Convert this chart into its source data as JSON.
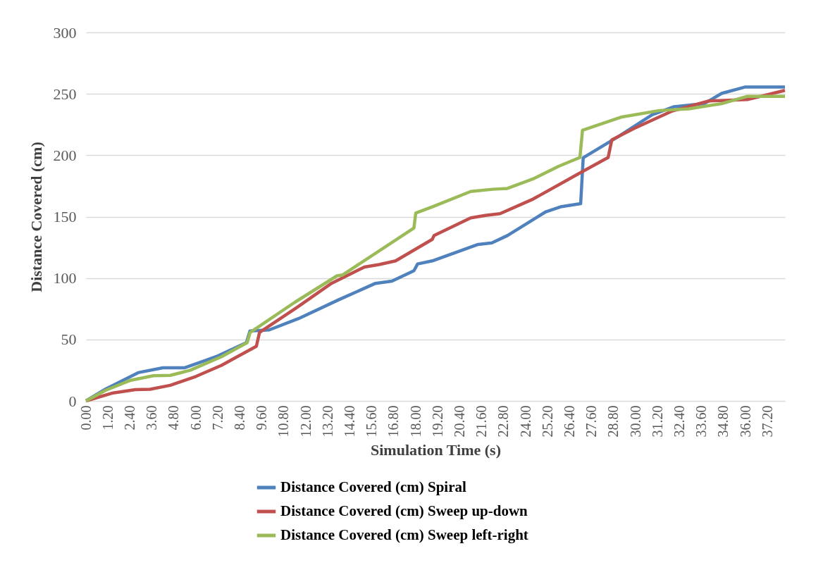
{
  "chart_data": {
    "type": "line",
    "xlabel": "Simulation Time (s)",
    "ylabel": "Distance Covered (cm)",
    "xlim": [
      0,
      38.15
    ],
    "ylim": [
      0,
      300
    ],
    "yticks": [
      0,
      50,
      100,
      150,
      200,
      250,
      300
    ],
    "xticks": [
      {
        "value": 0,
        "label": "0.00"
      },
      {
        "value": 1.2,
        "label": "1.20"
      },
      {
        "value": 2.4,
        "label": "2.40"
      },
      {
        "value": 3.6,
        "label": "3.60"
      },
      {
        "value": 4.8,
        "label": "4.80"
      },
      {
        "value": 6,
        "label": "6.00"
      },
      {
        "value": 7.2,
        "label": "7.20"
      },
      {
        "value": 8.4,
        "label": "8.40"
      },
      {
        "value": 9.6,
        "label": "9.60"
      },
      {
        "value": 10.8,
        "label": "10.80"
      },
      {
        "value": 12,
        "label": "12.00"
      },
      {
        "value": 13.2,
        "label": "13.20"
      },
      {
        "value": 14.4,
        "label": "14.40"
      },
      {
        "value": 15.6,
        "label": "15.60"
      },
      {
        "value": 16.8,
        "label": "16.80"
      },
      {
        "value": 18,
        "label": "18.00"
      },
      {
        "value": 19.2,
        "label": "19.20"
      },
      {
        "value": 20.4,
        "label": "20.40"
      },
      {
        "value": 21.6,
        "label": "21.60"
      },
      {
        "value": 22.8,
        "label": "22.80"
      },
      {
        "value": 24,
        "label": "24.00"
      },
      {
        "value": 25.2,
        "label": "25.20"
      },
      {
        "value": 26.4,
        "label": "26.40"
      },
      {
        "value": 27.6,
        "label": "27.60"
      },
      {
        "value": 28.8,
        "label": "28.80"
      },
      {
        "value": 30,
        "label": "30.00"
      },
      {
        "value": 31.2,
        "label": "31.20"
      },
      {
        "value": 32.4,
        "label": "32.40"
      },
      {
        "value": 33.6,
        "label": "33.60"
      },
      {
        "value": 34.8,
        "label": "34.80"
      },
      {
        "value": 36,
        "label": "36.00"
      },
      {
        "value": 37.2,
        "label": "37.20"
      }
    ],
    "grid": "y",
    "legend": "bottom",
    "line_style": "solid",
    "marker": "none",
    "series": [
      {
        "name": "Distance Covered (cm) Spiral",
        "color": "#4f81bd",
        "x": [
          0,
          1.07,
          2.85,
          4.2,
          5.4,
          7.1,
          8.76,
          8.95,
          10.0,
          11.6,
          13.8,
          15.8,
          16.7,
          17.9,
          18.1,
          18.9,
          21.4,
          22.15,
          23.0,
          25.1,
          25.9,
          27.0,
          27.14,
          29.1,
          30.9,
          32.1,
          33.75,
          34.7,
          35.96,
          38.15
        ],
        "values": [
          0,
          9.6,
          23,
          27,
          27,
          36,
          47.5,
          57,
          57.8,
          67,
          82.4,
          95.7,
          97.5,
          106,
          111.5,
          114,
          127.4,
          128.6,
          134.6,
          154,
          158,
          160.6,
          198,
          215.6,
          233,
          239.5,
          242,
          250.4,
          255.5,
          255.5
        ]
      },
      {
        "name": "Distance Covered (cm) Sweep up-down",
        "color": "#c0504d",
        "x": [
          0,
          1.48,
          2.7,
          3.5,
          4.6,
          6.0,
          7.4,
          9.3,
          9.47,
          11.5,
          13.4,
          15.2,
          16.0,
          16.9,
          18.9,
          19.0,
          21.0,
          21.8,
          22.6,
          24.4,
          26.75,
          28.5,
          28.7,
          29.9,
          32.0,
          34.0,
          36.1,
          38.15
        ],
        "values": [
          0,
          6.5,
          9.2,
          9.5,
          12.7,
          19.9,
          29,
          44.5,
          55.7,
          76,
          95.7,
          109,
          111,
          114,
          131.5,
          134.6,
          149,
          151,
          152.4,
          164.3,
          183.8,
          198.2,
          212.5,
          221.7,
          236,
          244.2,
          245.3,
          252.8
        ]
      },
      {
        "name": "Distance Covered (cm) Sweep left-right",
        "color": "#9bbb59",
        "x": [
          0,
          1.07,
          2.44,
          3.68,
          4.6,
          5.7,
          7.4,
          8.8,
          8.96,
          11.4,
          13.7,
          14.0,
          17.9,
          18.0,
          18.9,
          21.0,
          22.2,
          23.0,
          24.4,
          25.8,
          26.96,
          27.1,
          29.2,
          31.3,
          32.9,
          34.7,
          36.1,
          38.15
        ],
        "values": [
          0,
          8.6,
          16.8,
          20.5,
          20.8,
          25,
          36,
          47.5,
          55.7,
          80.3,
          101.8,
          102.5,
          140.8,
          153,
          158,
          170.5,
          172.3,
          173,
          180.7,
          191,
          198.2,
          220.3,
          231,
          236.4,
          237.8,
          242,
          248,
          248
        ]
      }
    ]
  }
}
